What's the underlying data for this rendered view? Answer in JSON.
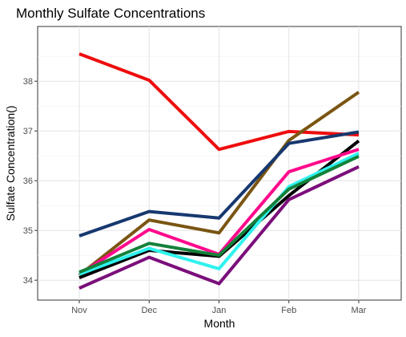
{
  "chart_data": {
    "type": "line",
    "title": "Monthly Sulfate Concentrations",
    "xlabel": "Month",
    "ylabel": "Sulfate Concentration()",
    "categories": [
      "Nov",
      "Dec",
      "Jan",
      "Feb",
      "Mar"
    ],
    "y_ticks": [
      34,
      35,
      36,
      37,
      38
    ],
    "ylim": [
      33.6,
      39.1
    ],
    "grid": true,
    "legend": "none",
    "series": [
      {
        "color": "#ee0d0d",
        "values": [
          38.55,
          38.02,
          36.63,
          36.99,
          36.92
        ]
      },
      {
        "color": "#7a5512",
        "values": [
          34.1,
          35.21,
          34.95,
          36.81,
          37.78
        ]
      },
      {
        "color": "#17386f",
        "values": [
          34.89,
          35.38,
          35.25,
          36.75,
          36.98
        ]
      },
      {
        "color": "#000000",
        "values": [
          34.05,
          34.6,
          34.48,
          35.7,
          36.8
        ]
      },
      {
        "color": "#ff0a8c",
        "values": [
          34.12,
          35.02,
          34.52,
          36.18,
          36.63
        ]
      },
      {
        "color": "#30f2ee",
        "values": [
          34.12,
          34.64,
          34.23,
          35.88,
          36.55
        ]
      },
      {
        "color": "#14813a",
        "values": [
          34.16,
          34.74,
          34.5,
          35.83,
          36.49
        ]
      },
      {
        "color": "#7b0f7b",
        "values": [
          33.84,
          34.46,
          33.93,
          35.62,
          36.28
        ]
      }
    ]
  }
}
